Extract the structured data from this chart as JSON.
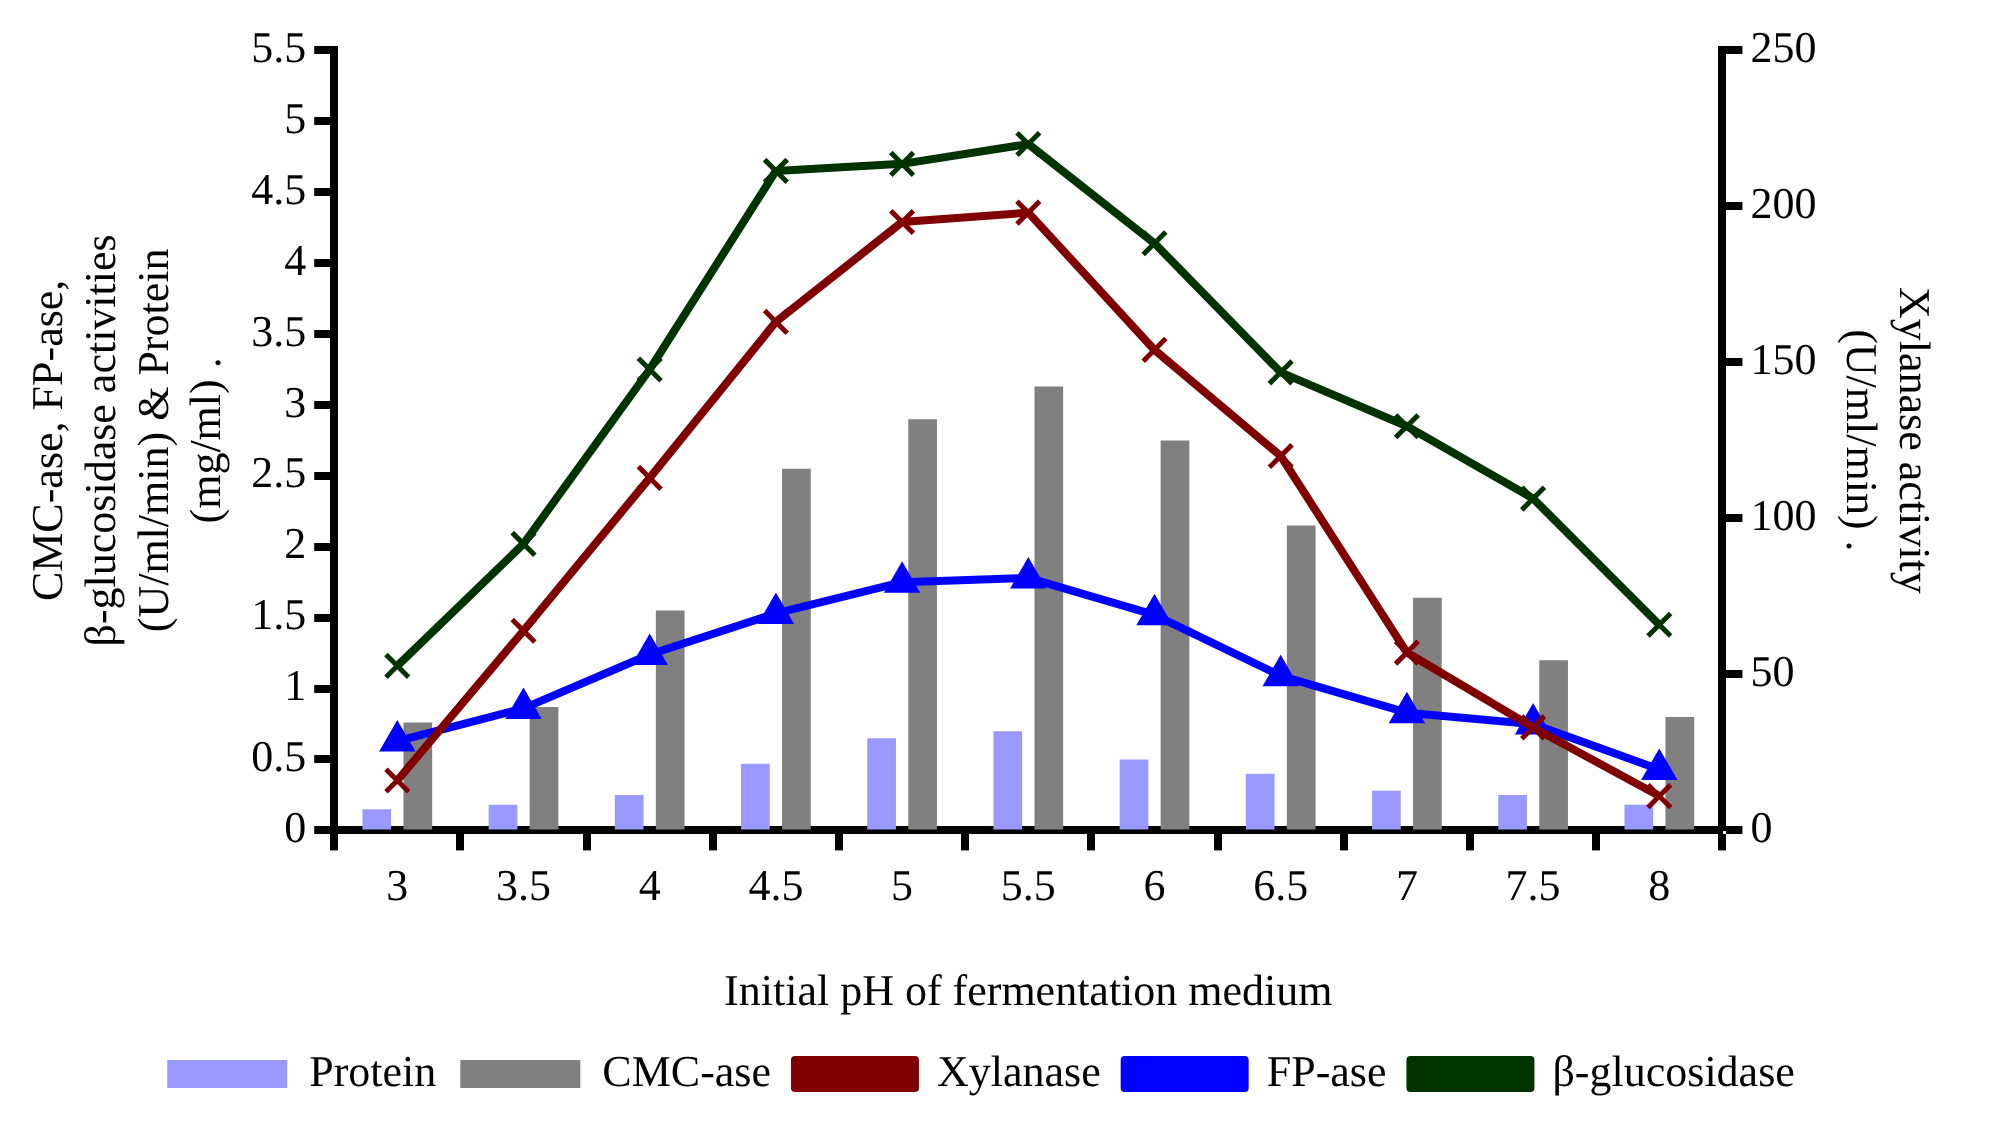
{
  "chart_data": {
    "type": "bar",
    "xlabel": "Initial pH of fermentation medium",
    "ylabel": "CMC-ase, FP-ase, β-glucosidase activities (U/ml/min) & Protein (mg/ml) .",
    "y2label": "Xylanase activity (U/ml/min) .",
    "categories": [
      "3",
      "3.5",
      "4",
      "4.5",
      "5",
      "5.5",
      "6",
      "6.5",
      "7",
      "7.5",
      "8"
    ],
    "series": [
      {
        "name": "Protein",
        "color": "#9999ff",
        "values": [
          0.15,
          0.18,
          0.25,
          0.47,
          0.65,
          0.7,
          0.5,
          0.4,
          0.28,
          0.25,
          0.18
        ]
      },
      {
        "name": "CMC-ase",
        "color": "#808080",
        "values": [
          0.76,
          0.87,
          1.55,
          2.55,
          2.9,
          3.13,
          2.75,
          2.15,
          1.64,
          1.2,
          0.8
        ]
      },
      {
        "name": "Xylanase",
        "type": "line",
        "axis": "y2",
        "marker": "cross",
        "color": "#800000",
        "values": [
          16,
          64,
          113,
          163,
          195,
          198,
          154,
          120,
          57,
          33,
          11
        ]
      },
      {
        "name": "FP-ase",
        "type": "line",
        "marker": "triangle",
        "color": "#0000ff",
        "values": [
          0.63,
          0.86,
          1.24,
          1.53,
          1.75,
          1.78,
          1.52,
          1.09,
          0.83,
          0.75,
          0.43
        ]
      },
      {
        "name": "β-glucosidase",
        "type": "line",
        "marker": "cross",
        "color": "#003300",
        "values": [
          1.16,
          2.02,
          3.25,
          4.65,
          4.7,
          4.84,
          4.14,
          3.23,
          2.85,
          2.34,
          1.45
        ]
      }
    ],
    "ylim": [
      0,
      5.5
    ],
    "yticks": [
      0,
      0.5,
      1,
      1.5,
      2,
      2.5,
      3,
      3.5,
      4,
      4.5,
      5,
      5.5
    ],
    "y2lim": [
      0,
      250
    ],
    "y2ticks": [
      0,
      50,
      100,
      150,
      200,
      250
    ],
    "grid": false,
    "legend": "bottom"
  }
}
